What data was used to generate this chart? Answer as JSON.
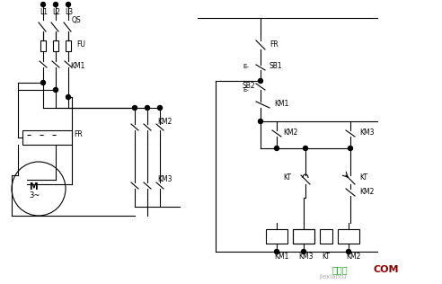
{
  "title": "",
  "bg_color": "#ffffff",
  "line_color": "#000000",
  "watermark_text": "接线图",
  "watermark_text2": "jiexiantu",
  "watermark_color1": "#22aa22",
  "watermark_color2": "#888888",
  "logo_color": "#8B0000",
  "logo_text": "COM"
}
